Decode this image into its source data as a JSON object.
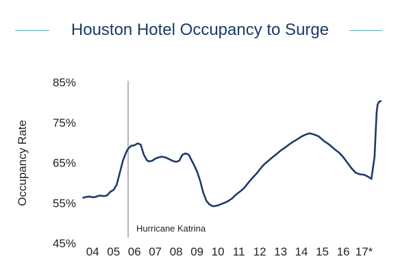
{
  "chart_data": {
    "type": "line",
    "title": "Houston Hotel Occupancy to Surge",
    "ylabel": "Occupancy Rate",
    "xlabel": "",
    "ylim": [
      45,
      85
    ],
    "yticks": [
      45,
      55,
      65,
      75,
      85
    ],
    "ytick_labels": [
      "45%",
      "55%",
      "65%",
      "75%",
      "85%"
    ],
    "xlim": [
      2003.5,
      2018.0
    ],
    "xtick_positions": [
      2004,
      2005,
      2006,
      2007,
      2008,
      2009,
      2010,
      2011,
      2012,
      2013,
      2014,
      2015,
      2016,
      2017
    ],
    "xtick_labels": [
      "04",
      "05",
      "06",
      "07",
      "08",
      "09",
      "10",
      "11",
      "12",
      "13",
      "14",
      "15",
      "16",
      "17*"
    ],
    "grid": false,
    "annotations": [
      {
        "label": "Hurricane Katrina",
        "x": 2005.7,
        "type": "vertical-line"
      }
    ],
    "series": [
      {
        "name": "Occupancy Rate",
        "color": "#1b3a66",
        "x": [
          2003.55,
          2003.7,
          2003.85,
          2004.0,
          2004.15,
          2004.3,
          2004.4,
          2004.55,
          2004.7,
          2004.85,
          2005.0,
          2005.15,
          2005.3,
          2005.45,
          2005.6,
          2005.7,
          2005.85,
          2006.0,
          2006.15,
          2006.3,
          2006.45,
          2006.6,
          2006.7,
          2006.85,
          2007.0,
          2007.15,
          2007.3,
          2007.5,
          2007.7,
          2007.85,
          2008.0,
          2008.15,
          2008.3,
          2008.45,
          2008.6,
          2008.75,
          2008.85,
          2009.0,
          2009.15,
          2009.3,
          2009.45,
          2009.6,
          2009.75,
          2009.85,
          2010.0,
          2010.1,
          2010.2,
          2010.35,
          2010.5,
          2010.7,
          2010.85,
          2011.0,
          2011.15,
          2011.3,
          2011.5,
          2011.7,
          2011.85,
          2012.0,
          2012.2,
          2012.4,
          2012.6,
          2012.8,
          2013.0,
          2013.2,
          2013.4,
          2013.6,
          2013.8,
          2014.0,
          2014.2,
          2014.4,
          2014.6,
          2014.8,
          2014.95,
          2015.1,
          2015.25,
          2015.4,
          2015.6,
          2015.8,
          2016.0,
          2016.2,
          2016.4,
          2016.6,
          2016.8,
          2017.0,
          2017.2,
          2017.35,
          2017.5,
          2017.6,
          2017.65,
          2017.73,
          2017.8
        ],
        "values": [
          56.3,
          56.5,
          56.6,
          56.4,
          56.5,
          56.8,
          56.8,
          56.7,
          56.9,
          57.8,
          58.2,
          59.5,
          62.5,
          65.5,
          67.5,
          68.5,
          69.2,
          69.3,
          69.8,
          69.5,
          67.0,
          65.6,
          65.3,
          65.5,
          66.0,
          66.3,
          66.5,
          66.3,
          65.8,
          65.4,
          65.2,
          65.5,
          67.0,
          67.3,
          67.0,
          65.5,
          64.5,
          62.8,
          60.5,
          57.5,
          55.5,
          54.6,
          54.2,
          54.2,
          54.4,
          54.6,
          54.8,
          55.1,
          55.5,
          56.2,
          57.0,
          57.6,
          58.2,
          59.0,
          60.3,
          61.5,
          62.3,
          63.3,
          64.5,
          65.4,
          66.3,
          67.1,
          68.0,
          68.7,
          69.5,
          70.2,
          70.8,
          71.5,
          72.0,
          72.3,
          72.0,
          71.6,
          71.0,
          70.3,
          69.8,
          69.2,
          68.3,
          67.5,
          66.4,
          65.0,
          63.6,
          62.5,
          62.1,
          62.0,
          61.5,
          61.0,
          66.5,
          77.5,
          79.5,
          80.2,
          80.3
        ]
      }
    ]
  }
}
